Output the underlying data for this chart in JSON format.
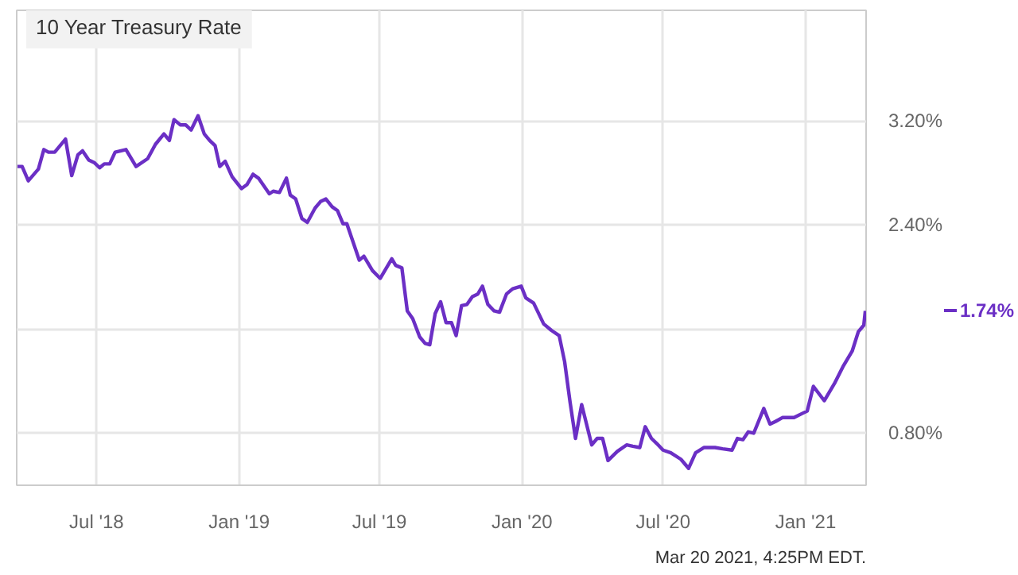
{
  "chart_data": {
    "type": "line",
    "title": "10 Year Treasury Rate",
    "x": [
      "2018-03-21",
      "2018-03-27",
      "2018-04-04",
      "2018-04-17",
      "2018-04-24",
      "2018-04-30",
      "2018-05-08",
      "2018-05-22",
      "2018-05-30",
      "2018-06-07",
      "2018-06-13",
      "2018-06-21",
      "2018-06-28",
      "2018-07-05",
      "2018-07-11",
      "2018-07-18",
      "2018-07-25",
      "2018-08-08",
      "2018-08-21",
      "2018-09-05",
      "2018-09-15",
      "2018-09-26",
      "2018-10-03",
      "2018-10-09",
      "2018-10-17",
      "2018-10-24",
      "2018-10-31",
      "2018-11-09",
      "2018-11-17",
      "2018-11-24",
      "2018-12-01",
      "2018-12-07",
      "2018-12-14",
      "2018-12-23",
      "2019-01-04",
      "2019-01-11",
      "2019-01-19",
      "2019-01-26",
      "2019-02-09",
      "2019-02-14",
      "2019-02-22",
      "2019-03-03",
      "2019-03-08",
      "2019-03-15",
      "2019-03-23",
      "2019-03-30",
      "2019-04-09",
      "2019-04-16",
      "2019-04-23",
      "2019-05-01",
      "2019-05-08",
      "2019-05-15",
      "2019-05-20",
      "2019-06-05",
      "2019-06-11",
      "2019-06-22",
      "2019-07-02",
      "2019-07-17",
      "2019-07-22",
      "2019-07-30",
      "2019-08-06",
      "2019-08-13",
      "2019-08-22",
      "2019-08-29",
      "2019-09-04",
      "2019-09-11",
      "2019-09-18",
      "2019-09-25",
      "2019-10-02",
      "2019-10-08",
      "2019-10-15",
      "2019-10-22",
      "2019-10-29",
      "2019-11-05",
      "2019-11-11",
      "2019-11-18",
      "2019-11-26",
      "2019-12-03",
      "2019-12-12",
      "2019-12-20",
      "2019-12-31",
      "2020-01-06",
      "2020-01-16",
      "2020-01-29",
      "2020-02-08",
      "2020-02-18",
      "2020-02-25",
      "2020-03-03",
      "2020-03-10",
      "2020-03-18",
      "2020-03-31",
      "2020-04-07",
      "2020-04-14",
      "2020-04-21",
      "2020-05-03",
      "2020-05-15",
      "2020-05-23",
      "2020-06-01",
      "2020-06-08",
      "2020-06-16",
      "2020-06-23",
      "2020-07-01",
      "2020-07-11",
      "2020-07-24",
      "2020-08-03",
      "2020-08-12",
      "2020-08-23",
      "2020-09-06",
      "2020-09-16",
      "2020-09-28",
      "2020-10-05",
      "2020-10-12",
      "2020-10-19",
      "2020-10-26",
      "2020-11-08",
      "2020-11-16",
      "2020-11-23",
      "2020-12-02",
      "2020-12-17",
      "2020-12-27",
      "2021-01-03",
      "2021-01-11",
      "2021-01-25",
      "2021-02-07",
      "2021-02-18",
      "2021-03-02",
      "2021-03-10",
      "2021-03-17",
      "2021-03-19"
    ],
    "series": [
      {
        "color": "#6b2fc5",
        "values": [
          2.85,
          2.85,
          2.74,
          2.83,
          2.98,
          2.96,
          2.96,
          3.06,
          2.78,
          2.94,
          2.97,
          2.9,
          2.88,
          2.84,
          2.87,
          2.87,
          2.96,
          2.98,
          2.85,
          2.91,
          3.02,
          3.1,
          3.05,
          3.21,
          3.17,
          3.17,
          3.13,
          3.24,
          3.1,
          3.05,
          3.01,
          2.85,
          2.89,
          2.77,
          2.68,
          2.71,
          2.79,
          2.76,
          2.64,
          2.66,
          2.65,
          2.76,
          2.63,
          2.6,
          2.45,
          2.42,
          2.53,
          2.58,
          2.6,
          2.54,
          2.51,
          2.41,
          2.41,
          2.13,
          2.16,
          2.05,
          1.99,
          2.14,
          2.09,
          2.07,
          1.74,
          1.68,
          1.54,
          1.49,
          1.48,
          1.72,
          1.81,
          1.65,
          1.65,
          1.55,
          1.78,
          1.79,
          1.85,
          1.87,
          1.93,
          1.79,
          1.74,
          1.73,
          1.87,
          1.91,
          1.93,
          1.84,
          1.8,
          1.64,
          1.59,
          1.55,
          1.35,
          1.04,
          0.76,
          1.02,
          0.71,
          0.76,
          0.76,
          0.59,
          0.66,
          0.71,
          0.7,
          0.69,
          0.85,
          0.76,
          0.72,
          0.67,
          0.65,
          0.6,
          0.53,
          0.65,
          0.69,
          0.69,
          0.68,
          0.67,
          0.76,
          0.75,
          0.81,
          0.8,
          0.99,
          0.87,
          0.89,
          0.92,
          0.92,
          0.95,
          0.97,
          1.16,
          1.05,
          1.18,
          1.31,
          1.43,
          1.58,
          1.63,
          1.74
        ]
      }
    ],
    "xlim": [
      "2018-03-20",
      "2021-03-20"
    ],
    "xticks": [
      {
        "value": "2018-07-01",
        "label": "Jul '18"
      },
      {
        "value": "2019-01-01",
        "label": "Jan '19"
      },
      {
        "value": "2019-07-01",
        "label": "Jul '19"
      },
      {
        "value": "2020-01-01",
        "label": "Jan '20"
      },
      {
        "value": "2020-07-01",
        "label": "Jul '20"
      },
      {
        "value": "2021-01-01",
        "label": "Jan '21"
      }
    ],
    "ylim": [
      0.4,
      4.05
    ],
    "yticks": [
      {
        "value": 0.8,
        "label": "0.80%"
      },
      {
        "value": 1.6,
        "label": null
      },
      {
        "value": 2.4,
        "label": "2.40%"
      },
      {
        "value": 3.2,
        "label": "3.20%"
      }
    ],
    "grid": true,
    "marker": "none",
    "line_style": "solid",
    "annotations": [
      "1.74%",
      "Mar 20 2021, 4:25PM EDT."
    ]
  }
}
